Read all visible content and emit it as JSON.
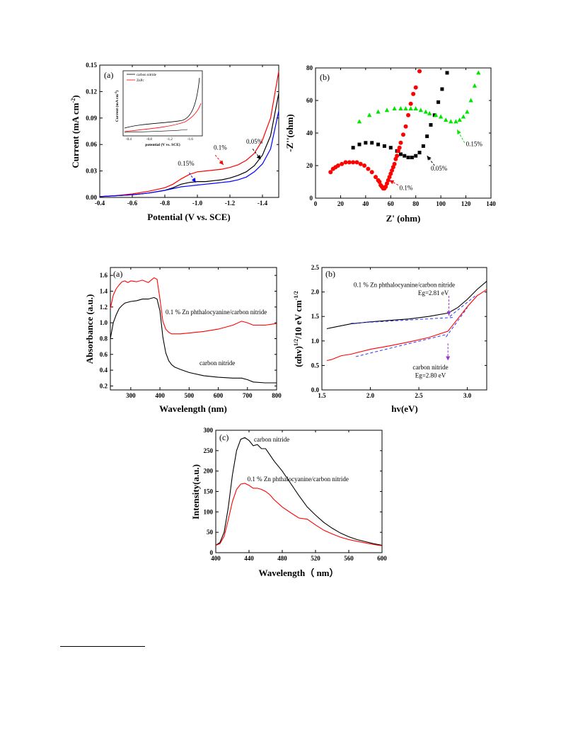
{
  "colors": {
    "black": "#000000",
    "red": "#ff0000",
    "blue": "#0000ff",
    "green": "#00e600",
    "purple": "#9933cc",
    "dashblue": "#3333ff"
  },
  "chart_data": [
    {
      "id": "cv",
      "type": "line",
      "panel_label": "(a)",
      "xlabel": "Potential (V vs. SCE)",
      "ylabel": "Current (mA cm",
      "ylabel_sup": "-2",
      "ylabel_end": ")",
      "xlim": [
        -0.4,
        -1.5
      ],
      "ylim": [
        0,
        0.15
      ],
      "xticks": [
        -0.4,
        -0.6,
        -0.8,
        -1.0,
        -1.2,
        -1.4
      ],
      "xtick_labels": [
        "-0.4",
        "-0.6",
        "-0.8",
        "-1.0",
        "-1.2",
        "-1.4"
      ],
      "yticks": [
        0.0,
        0.03,
        0.06,
        0.09,
        0.12,
        0.15
      ],
      "ytick_labels": [
        "0.00",
        "0.03",
        "0.06",
        "0.09",
        "0.12",
        "0.15"
      ],
      "series": [
        {
          "color": "#000000",
          "x": [
            -0.4,
            -0.5,
            -0.6,
            -0.7,
            -0.8,
            -0.85,
            -0.9,
            -0.95,
            -1.0,
            -1.05,
            -1.1,
            -1.15,
            -1.2,
            -1.25,
            -1.3,
            -1.35,
            -1.4,
            -1.45,
            -1.5
          ],
          "y": [
            0.001,
            0.002,
            0.003,
            0.005,
            0.008,
            0.011,
            0.015,
            0.017,
            0.018,
            0.018,
            0.019,
            0.02,
            0.022,
            0.025,
            0.029,
            0.036,
            0.048,
            0.07,
            0.118
          ]
        },
        {
          "color": "#ff0000",
          "x": [
            -0.4,
            -0.5,
            -0.6,
            -0.7,
            -0.8,
            -0.85,
            -0.9,
            -0.95,
            -1.0,
            -1.05,
            -1.1,
            -1.15,
            -1.2,
            -1.25,
            -1.3,
            -1.35,
            -1.4,
            -1.45,
            -1.5
          ],
          "y": [
            0.001,
            0.002,
            0.004,
            0.007,
            0.011,
            0.015,
            0.021,
            0.026,
            0.029,
            0.03,
            0.031,
            0.032,
            0.034,
            0.037,
            0.042,
            0.05,
            0.065,
            0.09,
            0.143
          ]
        },
        {
          "color": "#0000ff",
          "x": [
            -0.4,
            -0.5,
            -0.6,
            -0.7,
            -0.8,
            -0.85,
            -0.9,
            -0.95,
            -1.0,
            -1.05,
            -1.1,
            -1.15,
            -1.2,
            -1.25,
            -1.3,
            -1.35,
            -1.4,
            -1.45,
            -1.5
          ],
          "y": [
            0.001,
            0.002,
            0.003,
            0.005,
            0.008,
            0.01,
            0.012,
            0.013,
            0.014,
            0.015,
            0.016,
            0.017,
            0.018,
            0.02,
            0.023,
            0.029,
            0.038,
            0.055,
            0.098
          ]
        }
      ],
      "annotations": [
        {
          "text": "0.05%",
          "x": -1.3,
          "y": 0.061,
          "color": "#000000",
          "ax": -1.34,
          "ay": 0.055,
          "bx": -1.39,
          "by": 0.043
        },
        {
          "text": "0.1%",
          "x": -1.1,
          "y": 0.054,
          "color": "#ff0000",
          "ax": -1.11,
          "ay": 0.048,
          "bx": -1.16,
          "by": 0.037
        },
        {
          "text": "0.15%",
          "x": -0.88,
          "y": 0.036,
          "color": "#0000ff",
          "ax": -0.95,
          "ay": 0.028,
          "bx": -0.99,
          "by": 0.017
        }
      ],
      "inset": {
        "legend": [
          "carbon nitride",
          "ZnPc"
        ],
        "xlabel": "potential (V vs. SCE)",
        "ylabel": "Current (mA cm",
        "ylabel_sup": "-2",
        "ylabel_end": ")"
      }
    },
    {
      "id": "eis",
      "type": "scatter",
      "panel_label": "(b)",
      "xlabel": "Z' (ohm)",
      "ylabel": "-Z''(ohm)",
      "xlim": [
        0,
        140
      ],
      "ylim": [
        0,
        80
      ],
      "xticks": [
        0,
        20,
        40,
        60,
        80,
        100,
        120,
        140
      ],
      "xtick_labels": [
        "0",
        "20",
        "40",
        "60",
        "80",
        "100",
        "120",
        "140"
      ],
      "yticks": [
        0,
        20,
        40,
        60,
        80
      ],
      "ytick_labels": [
        "0",
        "20",
        "40",
        "60",
        "80"
      ],
      "series": [
        {
          "color": "#000000",
          "marker": "square",
          "x": [
            30,
            35,
            40,
            45,
            50,
            55,
            60,
            65,
            68,
            71,
            74,
            77,
            80,
            83,
            86,
            89,
            92,
            95,
            98,
            101,
            105
          ],
          "y": [
            31,
            33,
            34,
            34,
            33,
            32,
            31,
            29,
            27,
            26,
            25,
            25,
            26,
            28,
            32,
            38,
            45,
            51,
            59,
            67,
            77
          ]
        },
        {
          "color": "#ff0000",
          "marker": "circle",
          "x": [
            12,
            14,
            16,
            18,
            21,
            24,
            27,
            30,
            33,
            36,
            39,
            42,
            45,
            48,
            50,
            51,
            52,
            53,
            54,
            55,
            56,
            57,
            58,
            59,
            60,
            61,
            62,
            63,
            64,
            65,
            66,
            67,
            68,
            70,
            72,
            74,
            76,
            78,
            80,
            83
          ],
          "y": [
            16,
            18,
            19,
            20,
            21,
            22,
            22,
            22,
            22,
            21,
            20,
            18,
            16,
            13,
            11,
            10,
            8,
            7,
            6,
            6,
            7,
            9,
            11,
            13,
            15,
            17,
            19,
            21,
            24,
            26,
            29,
            31,
            34,
            39,
            44,
            51,
            58,
            64,
            68,
            78
          ]
        },
        {
          "color": "#00e600",
          "marker": "triangle",
          "x": [
            35,
            43,
            50,
            57,
            63,
            68,
            72,
            76,
            80,
            84,
            88,
            91,
            96,
            100,
            104,
            108,
            112,
            115,
            118,
            121,
            124,
            127,
            130
          ],
          "y": [
            47,
            51,
            53,
            54,
            55,
            55,
            55,
            55,
            55,
            54,
            53,
            52,
            51,
            50,
            48,
            47,
            47,
            48,
            50,
            53,
            60,
            69,
            77
          ]
        }
      ],
      "annotations": [
        {
          "text": "0.15%",
          "x": 120,
          "y": 32,
          "color": "#00e600",
          "ax": 119,
          "ay": 34,
          "bx": 113,
          "by": 42
        },
        {
          "text": "0.05%",
          "x": 92,
          "y": 17,
          "color": "#000000",
          "ax": 95,
          "ay": 20,
          "bx": 89,
          "by": 26
        },
        {
          "text": "0.1%",
          "x": 67,
          "y": 5,
          "color": "#ff0000",
          "ax": 66,
          "ay": 8,
          "bx": 59,
          "by": 11
        }
      ]
    },
    {
      "id": "abs",
      "type": "line",
      "panel_label": "(a)",
      "xlabel": "Wavelength (nm)",
      "ylabel": "Absorbance (a.u.)",
      "xlim": [
        230,
        800
      ],
      "ylim": [
        0.15,
        1.7
      ],
      "xticks": [
        300,
        400,
        500,
        600,
        700,
        800
      ],
      "xtick_labels": [
        "300",
        "400",
        "500",
        "600",
        "700",
        "800"
      ],
      "yticks": [
        0.2,
        0.4,
        0.6,
        0.8,
        1.0,
        1.2,
        1.4,
        1.6
      ],
      "ytick_labels": [
        "0.2",
        "0.4",
        "0.6",
        "0.8",
        "1.0",
        "1.2",
        "1.4",
        "1.6"
      ],
      "series": [
        {
          "name": "0.1 % Zn phthalocyanine/carbon nitride",
          "color": "#ff0000",
          "x": [
            230,
            240,
            250,
            260,
            270,
            280,
            290,
            300,
            320,
            340,
            360,
            380,
            390,
            400,
            410,
            420,
            430,
            440,
            450,
            470,
            500,
            550,
            600,
            650,
            680,
            700,
            720,
            760,
            800
          ],
          "y": [
            1.18,
            1.35,
            1.43,
            1.48,
            1.52,
            1.53,
            1.51,
            1.53,
            1.52,
            1.54,
            1.51,
            1.57,
            1.55,
            1.3,
            1.02,
            0.92,
            0.88,
            0.86,
            0.86,
            0.86,
            0.87,
            0.89,
            0.92,
            0.97,
            1.02,
            1.0,
            0.97,
            0.97,
            0.99
          ]
        },
        {
          "name": "carbon nitride",
          "color": "#000000",
          "x": [
            230,
            240,
            250,
            260,
            270,
            280,
            290,
            300,
            320,
            340,
            360,
            380,
            390,
            400,
            410,
            420,
            430,
            440,
            450,
            470,
            500,
            550,
            600,
            650,
            680,
            700,
            720,
            760,
            800
          ],
          "y": [
            0.8,
            1.0,
            1.1,
            1.18,
            1.22,
            1.25,
            1.26,
            1.27,
            1.28,
            1.3,
            1.3,
            1.32,
            1.3,
            1.15,
            0.82,
            0.62,
            0.52,
            0.47,
            0.44,
            0.41,
            0.37,
            0.33,
            0.31,
            0.3,
            0.3,
            0.28,
            0.25,
            0.24,
            0.24
          ]
        }
      ]
    },
    {
      "id": "tauc",
      "type": "line",
      "panel_label": "(b)",
      "xlabel": "hv(eV)",
      "ylabel": "(αhv)",
      "ylabel_sup1": "1/2",
      "ylabel_mid": "/10 eV cm",
      "ylabel_sup2": "-1/2",
      "xlim": [
        1.5,
        3.2
      ],
      "ylim": [
        0.0,
        2.5
      ],
      "xticks": [
        1.5,
        2.0,
        2.5,
        3.0
      ],
      "xtick_labels": [
        "1.5",
        "2.0",
        "2.5",
        "3.0"
      ],
      "yticks": [
        0.0,
        0.5,
        1.0,
        1.5,
        2.0,
        2.5
      ],
      "ytick_labels": [
        "0.0",
        "0.5",
        "1.0",
        "1.5",
        "2.0",
        "2.5"
      ],
      "series": [
        {
          "name": "0.1 % Zn phthalocyanine/carbon nitride",
          "color": "#000000",
          "x": [
            1.55,
            1.6,
            1.7,
            1.8,
            1.9,
            2.0,
            2.2,
            2.4,
            2.6,
            2.8,
            2.9,
            3.0,
            3.1,
            3.2
          ],
          "y": [
            1.25,
            1.27,
            1.31,
            1.35,
            1.37,
            1.39,
            1.42,
            1.45,
            1.5,
            1.57,
            1.68,
            1.85,
            2.05,
            2.22
          ]
        },
        {
          "name": "carbon nitride",
          "color": "#ff0000",
          "x": [
            1.55,
            1.6,
            1.7,
            1.8,
            1.9,
            2.0,
            2.2,
            2.4,
            2.6,
            2.8,
            2.9,
            3.0,
            3.1,
            3.2
          ],
          "y": [
            0.6,
            0.62,
            0.7,
            0.73,
            0.78,
            0.83,
            0.9,
            0.98,
            1.07,
            1.2,
            1.45,
            1.7,
            1.92,
            2.05
          ]
        }
      ],
      "fit_lines": [
        {
          "color": "#3333ff",
          "x": [
            1.8,
            2.85
          ],
          "y": [
            1.36,
            1.48
          ]
        },
        {
          "color": "#3333ff",
          "x": [
            2.82,
            3.1
          ],
          "y": [
            1.5,
            1.95
          ]
        },
        {
          "color": "#3333ff",
          "x": [
            1.85,
            2.8
          ],
          "y": [
            0.68,
            1.14
          ]
        },
        {
          "color": "#3333ff",
          "x": [
            2.78,
            3.0
          ],
          "y": [
            1.08,
            1.68
          ]
        }
      ],
      "labels": [
        {
          "text": "0.1 % Zn phthalocyanine/carbon nitride",
          "x": 2.35,
          "y": 2.1
        },
        {
          "text": "Eg=2.81 eV",
          "x": 2.65,
          "y": 1.94
        },
        {
          "text": "carbon nitride",
          "x": 2.62,
          "y": 0.42
        },
        {
          "text": "Eg=2.80 eV",
          "x": 2.62,
          "y": 0.25
        }
      ],
      "markers": [
        {
          "x": 2.81,
          "y1": 1.92,
          "y2": 1.52
        },
        {
          "x": 2.8,
          "y1": 0.95,
          "y2": 0.6
        }
      ]
    },
    {
      "id": "pl",
      "type": "line",
      "panel_label": "(c)",
      "xlabel": "Wavelength（ nm）",
      "ylabel": "Intensity(a.u.)",
      "xlim": [
        400,
        600
      ],
      "ylim": [
        0,
        300
      ],
      "xticks": [
        400,
        440,
        480,
        520,
        560,
        600
      ],
      "xtick_labels": [
        "400",
        "440",
        "480",
        "520",
        "560",
        "600"
      ],
      "yticks": [
        0,
        50,
        100,
        150,
        200,
        250,
        300
      ],
      "ytick_labels": [
        "0",
        "50",
        "100",
        "150",
        "200",
        "250",
        "300"
      ],
      "series": [
        {
          "name": "carbon nitride",
          "color": "#000000",
          "x": [
            400,
            405,
            410,
            415,
            420,
            425,
            430,
            435,
            440,
            445,
            450,
            455,
            460,
            465,
            470,
            480,
            490,
            500,
            510,
            520,
            530,
            540,
            550,
            560,
            570,
            580,
            590,
            600
          ],
          "y": [
            18,
            25,
            50,
            110,
            190,
            250,
            278,
            282,
            275,
            262,
            265,
            255,
            255,
            240,
            225,
            200,
            170,
            140,
            112,
            92,
            74,
            60,
            48,
            39,
            32,
            27,
            22,
            18
          ]
        },
        {
          "name": "0.1 % Zn phthalocyanine/carbon nitride",
          "color": "#ff0000",
          "x": [
            400,
            405,
            410,
            415,
            420,
            425,
            430,
            435,
            440,
            445,
            450,
            455,
            460,
            465,
            470,
            480,
            490,
            500,
            510,
            520,
            530,
            540,
            550,
            560,
            570,
            580,
            590,
            600
          ],
          "y": [
            18,
            22,
            40,
            80,
            125,
            155,
            168,
            170,
            165,
            158,
            158,
            155,
            150,
            142,
            130,
            112,
            98,
            85,
            82,
            68,
            55,
            46,
            38,
            32,
            28,
            24,
            20,
            17
          ]
        }
      ],
      "labels": [
        {
          "text": "carbon nitride",
          "x": 446,
          "y": 272
        },
        {
          "text": "0.1 % Zn phthalocyanine/carbon nitride",
          "x": 438,
          "y": 175
        }
      ]
    }
  ],
  "labels_abs": {
    "zn": "0.1 % Zn phthalocyanine/carbon nitride",
    "cn": "carbon nitride"
  },
  "inset_ticks": {
    "x": [
      "-0.4",
      "-0.8",
      "-1.2",
      "-1.6"
    ]
  }
}
